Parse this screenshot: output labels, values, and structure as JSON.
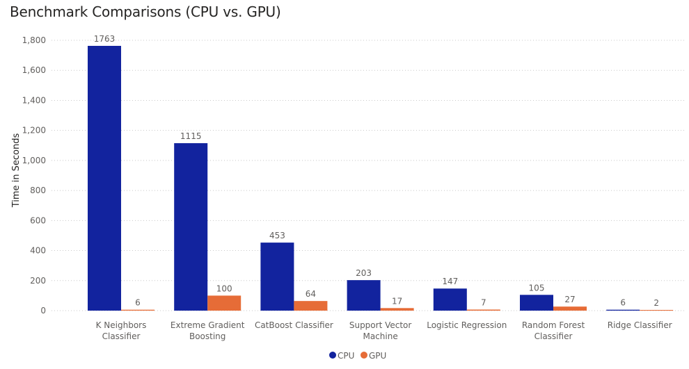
{
  "title": "Benchmark Comparisons (CPU vs. GPU)",
  "chart_data": {
    "type": "bar",
    "title": "Benchmark Comparisons (CPU vs. GPU)",
    "xlabel": "",
    "ylabel": "Time in Seconds",
    "ylim": [
      0,
      1800
    ],
    "yticks": [
      0,
      200,
      400,
      600,
      800,
      1000,
      1200,
      1400,
      1600,
      1800
    ],
    "ytick_labels": [
      "0",
      "200",
      "400",
      "600",
      "800",
      "1,000",
      "1,200",
      "1,400",
      "1,600",
      "1,800"
    ],
    "grid": "horizontal dotted",
    "legend_position": "bottom-center",
    "categories": [
      [
        "K Neighbors",
        "Classifier"
      ],
      [
        "Extreme Gradient",
        "Boosting"
      ],
      [
        "CatBoost Classifier"
      ],
      [
        "Support Vector",
        "Machine"
      ],
      [
        "Logistic Regression"
      ],
      [
        "Random Forest",
        "Classifier"
      ],
      [
        "Ridge Classifier"
      ]
    ],
    "series": [
      {
        "name": "CPU",
        "color": "#12239e",
        "values": [
          1763,
          1115,
          453,
          203,
          147,
          105,
          6
        ]
      },
      {
        "name": "GPU",
        "color": "#e66c37",
        "values": [
          6,
          100,
          64,
          17,
          7,
          27,
          2
        ]
      }
    ]
  }
}
